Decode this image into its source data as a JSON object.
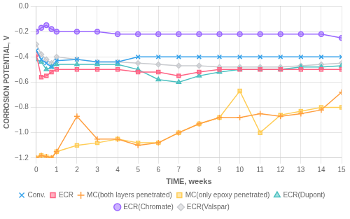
{
  "chart_data": {
    "type": "line",
    "xlabel": "TIME, weeks",
    "ylabel": "CORROSION POTENTIAL, V",
    "xlim": [
      0,
      15
    ],
    "ylim": [
      -1.2,
      0.0
    ],
    "xticks": [
      0,
      1,
      2,
      3,
      4,
      5,
      6,
      7,
      8,
      9,
      10,
      11,
      12,
      13,
      14,
      15
    ],
    "yticks": [
      {
        "value": 0.0,
        "label": "0.0"
      },
      {
        "value": -0.2,
        "label": "−0.2"
      },
      {
        "value": -0.4,
        "label": "−0.4"
      },
      {
        "value": -0.6,
        "label": "−0.6"
      },
      {
        "value": -0.8,
        "label": "−0.8"
      },
      {
        "value": -1.0,
        "label": "−1.0"
      },
      {
        "value": -1.2,
        "label": "−1.2"
      }
    ],
    "grid": true,
    "legend": "bottom",
    "x": [
      0,
      0.25,
      0.5,
      0.75,
      1,
      2,
      3,
      4,
      5,
      6,
      7,
      8,
      9,
      10,
      11,
      12,
      13,
      14,
      15
    ],
    "series": [
      {
        "name": "Conv.",
        "marker": "x",
        "values": [
          -0.35,
          -0.42,
          -0.45,
          -0.48,
          -0.43,
          -0.42,
          -0.44,
          -0.44,
          -0.4,
          -0.4,
          -0.4,
          -0.4,
          -0.4,
          -0.4,
          -0.4,
          -0.4,
          -0.4,
          -0.4,
          -0.4
        ]
      },
      {
        "name": "ECR",
        "marker": "square",
        "values": [
          -0.38,
          -0.56,
          -0.55,
          -0.52,
          -0.5,
          -0.5,
          -0.5,
          -0.5,
          -0.52,
          -0.52,
          -0.55,
          -0.52,
          -0.5,
          -0.5,
          -0.5,
          -0.5,
          -0.5,
          -0.5,
          -0.5
        ]
      },
      {
        "name": "MC(both layers penetrated)",
        "marker": "plus",
        "values": [
          -1.2,
          -1.18,
          -1.19,
          -1.2,
          -1.15,
          -0.87,
          -1.05,
          -1.05,
          -1.1,
          -1.08,
          -1.0,
          -0.93,
          -0.88,
          -0.88,
          -0.85,
          -0.87,
          -0.85,
          -0.82,
          -0.68
        ]
      },
      {
        "name": "MC(only epoxy penetrated)",
        "marker": "square",
        "values": [
          -1.2,
          -1.18,
          -1.19,
          -1.2,
          -1.15,
          -1.1,
          -1.08,
          -1.05,
          -1.08,
          -1.08,
          -1.0,
          -0.93,
          -0.88,
          -0.67,
          -1.0,
          -0.86,
          -0.83,
          -0.8,
          -0.8
        ]
      },
      {
        "name": "ECR(Dupont)",
        "marker": "triangle",
        "values": [
          -0.42,
          -0.44,
          -0.5,
          -0.48,
          -0.46,
          -0.46,
          -0.46,
          -0.46,
          -0.5,
          -0.58,
          -0.6,
          -0.55,
          -0.52,
          -0.5,
          -0.5,
          -0.5,
          -0.48,
          -0.48,
          -0.47
        ]
      },
      {
        "name": "ECR(Chromate)",
        "marker": "circle",
        "values": [
          -0.2,
          -0.17,
          -0.15,
          -0.18,
          -0.2,
          -0.2,
          -0.2,
          -0.22,
          -0.22,
          -0.22,
          -0.22,
          -0.22,
          -0.22,
          -0.22,
          -0.22,
          -0.22,
          -0.22,
          -0.22,
          -0.25
        ]
      },
      {
        "name": "ECR(Valspar)",
        "marker": "diamond",
        "values": [
          -0.3,
          -0.38,
          -0.42,
          -0.45,
          -0.4,
          -0.42,
          -0.44,
          -0.44,
          -0.45,
          -0.46,
          -0.47,
          -0.47,
          -0.48,
          -0.48,
          -0.48,
          -0.48,
          -0.47,
          -0.46,
          -0.45
        ]
      }
    ]
  }
}
